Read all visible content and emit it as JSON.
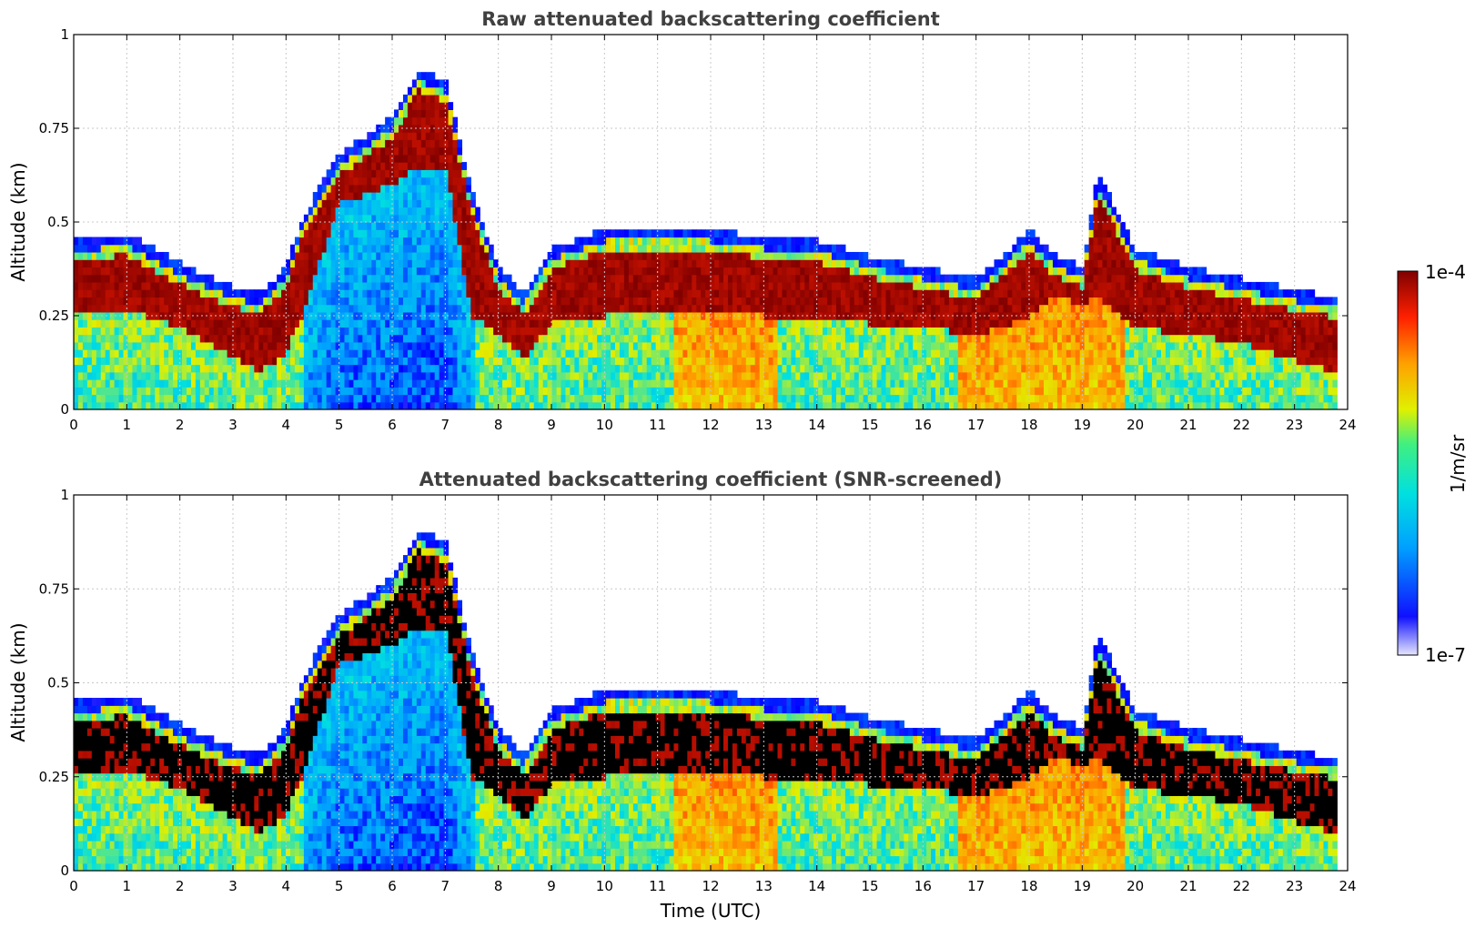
{
  "chart_data": [
    {
      "type": "heatmap",
      "title": "Raw attenuated backscattering coefficient",
      "ylabel": "Altitude (km)",
      "xlabel": "",
      "xlim": [
        0,
        24
      ],
      "ylim": [
        0,
        1
      ],
      "xticks": [
        "0",
        "1",
        "2",
        "3",
        "4",
        "5",
        "6",
        "7",
        "8",
        "9",
        "10",
        "11",
        "12",
        "13",
        "14",
        "15",
        "16",
        "17",
        "18",
        "19",
        "20",
        "21",
        "22",
        "23",
        "24"
      ],
      "yticks": [
        "0",
        "0.25",
        "0.5",
        "0.75",
        "1"
      ],
      "grid": true,
      "screened": false,
      "layer_profile": {
        "time_utc": [
          0,
          1,
          2,
          3,
          3.5,
          4,
          4.3,
          5,
          6,
          6.5,
          7,
          7.5,
          8,
          8.5,
          9,
          10,
          11,
          12,
          13,
          14,
          15,
          16,
          17,
          17.5,
          18,
          18.5,
          19,
          19.3,
          20,
          21,
          22,
          23,
          23.8
        ],
        "cloud_top_km": [
          0.42,
          0.44,
          0.36,
          0.3,
          0.28,
          0.35,
          0.48,
          0.65,
          0.75,
          0.88,
          0.85,
          0.55,
          0.35,
          0.28,
          0.4,
          0.45,
          0.45,
          0.45,
          0.43,
          0.42,
          0.38,
          0.35,
          0.32,
          0.38,
          0.45,
          0.38,
          0.35,
          0.6,
          0.4,
          0.35,
          0.32,
          0.29,
          0.27
        ],
        "cloud_base_km": [
          0.25,
          0.27,
          0.22,
          0.14,
          0.1,
          0.15,
          0.25,
          0.55,
          0.6,
          0.65,
          0.65,
          0.25,
          0.2,
          0.14,
          0.23,
          0.25,
          0.26,
          0.26,
          0.25,
          0.24,
          0.23,
          0.22,
          0.2,
          0.22,
          0.25,
          0.3,
          0.28,
          0.3,
          0.22,
          0.2,
          0.18,
          0.13,
          0.1
        ]
      }
    },
    {
      "type": "heatmap",
      "title": "Attenuated backscattering coefficient (SNR-screened)",
      "ylabel": "Altitude (km)",
      "xlabel": "Time (UTC)",
      "xlim": [
        0,
        24
      ],
      "ylim": [
        0,
        1
      ],
      "xticks": [
        "0",
        "1",
        "2",
        "3",
        "4",
        "5",
        "6",
        "7",
        "8",
        "9",
        "10",
        "11",
        "12",
        "13",
        "14",
        "15",
        "16",
        "17",
        "18",
        "19",
        "20",
        "21",
        "22",
        "23",
        "24"
      ],
      "yticks": [
        "0",
        "0.25",
        "0.5",
        "0.75",
        "1"
      ],
      "grid": true,
      "screened": true,
      "layer_profile": {
        "time_utc": [
          0,
          1,
          2,
          3,
          3.5,
          4,
          4.3,
          5,
          6,
          6.5,
          7,
          7.5,
          8,
          8.5,
          9,
          10,
          11,
          12,
          13,
          14,
          15,
          16,
          17,
          17.5,
          18,
          18.5,
          19,
          19.3,
          20,
          21,
          22,
          23,
          23.8
        ],
        "cloud_top_km": [
          0.42,
          0.44,
          0.36,
          0.3,
          0.28,
          0.35,
          0.48,
          0.65,
          0.75,
          0.88,
          0.85,
          0.55,
          0.35,
          0.28,
          0.4,
          0.45,
          0.45,
          0.45,
          0.43,
          0.42,
          0.38,
          0.35,
          0.32,
          0.38,
          0.45,
          0.38,
          0.35,
          0.6,
          0.4,
          0.35,
          0.32,
          0.29,
          0.27
        ],
        "cloud_base_km": [
          0.25,
          0.27,
          0.22,
          0.14,
          0.1,
          0.15,
          0.25,
          0.55,
          0.6,
          0.65,
          0.65,
          0.25,
          0.2,
          0.14,
          0.23,
          0.25,
          0.26,
          0.26,
          0.25,
          0.24,
          0.23,
          0.22,
          0.2,
          0.22,
          0.25,
          0.3,
          0.28,
          0.3,
          0.22,
          0.2,
          0.18,
          0.13,
          0.1
        ]
      }
    }
  ],
  "colorbar": {
    "label": "1/m/sr",
    "max_label": "1e-4",
    "min_label": "1e-7",
    "scale": "log",
    "colormap": [
      "#e6e6ff",
      "#0000ff",
      "#00a0ff",
      "#00e0e0",
      "#e0f000",
      "#ffa000",
      "#ff2000",
      "#800000"
    ]
  },
  "colors": {
    "screened_saturation": "#000000",
    "grid": "#c8c8c8"
  }
}
